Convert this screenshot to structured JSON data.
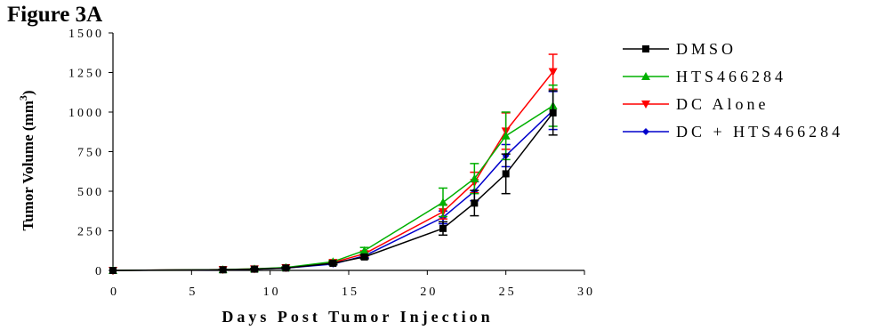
{
  "figure_label": "Figure 3A",
  "chart_data": {
    "type": "line",
    "title": "",
    "xlabel": "Days Post Tumor Injection",
    "ylabel": "Tumor Volume (mm",
    "ylabel_superscript": "3",
    "ylabel_suffix": ")",
    "xlim": [
      0,
      30
    ],
    "ylim": [
      0,
      1500
    ],
    "xticks": [
      0,
      5,
      10,
      15,
      20,
      25,
      30
    ],
    "yticks": [
      0,
      250,
      500,
      750,
      1000,
      1250,
      1500
    ],
    "xtick_labels": [
      "0",
      "5",
      "10",
      "15",
      "20",
      "25",
      "30"
    ],
    "ytick_labels": [
      "0",
      "250",
      "500",
      "750",
      "1000",
      "1250",
      "1500"
    ],
    "grid": false,
    "legend_position": "right",
    "x": [
      0,
      7,
      9,
      11,
      14,
      16,
      21,
      23,
      25,
      28
    ],
    "series": [
      {
        "name": "DMSO",
        "color": "#000000",
        "marker": "square",
        "values": [
          0,
          4,
          8,
          15,
          45,
          85,
          265,
          425,
          610,
          995
        ],
        "errors": [
          0,
          2,
          3,
          4,
          7,
          12,
          42,
          80,
          125,
          140
        ]
      },
      {
        "name": "HTS466284",
        "color": "#00b000",
        "marker": "triangle-up",
        "values": [
          0,
          5,
          10,
          18,
          55,
          125,
          430,
          580,
          850,
          1040
        ],
        "errors": [
          0,
          2,
          3,
          4,
          8,
          20,
          90,
          95,
          150,
          130
        ]
      },
      {
        "name": "DC Alone",
        "color": "#ff0000",
        "marker": "triangle-down",
        "values": [
          0,
          5,
          9,
          17,
          50,
          105,
          370,
          555,
          880,
          1255
        ],
        "errors": [
          0,
          2,
          3,
          4,
          7,
          15,
          45,
          65,
          115,
          110
        ]
      },
      {
        "name": "DC + HTS466284",
        "color": "#0000cc",
        "marker": "diamond",
        "values": [
          0,
          4,
          8,
          15,
          40,
          92,
          335,
          500,
          725,
          1010
        ],
        "errors": [
          0,
          2,
          3,
          4,
          6,
          12,
          40,
          60,
          70,
          120
        ]
      }
    ]
  }
}
